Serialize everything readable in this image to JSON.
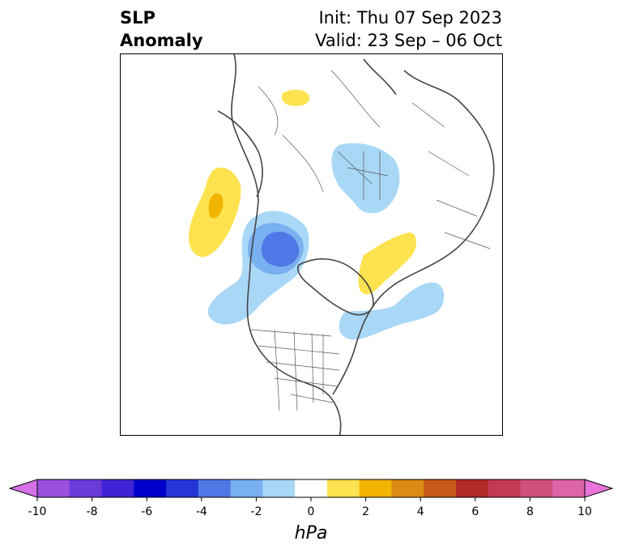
{
  "title": {
    "left_line1": "SLP",
    "left_line2": "Anomaly",
    "init": "Init: Thu 07 Sep 2023",
    "valid": "Valid: 23 Sep – 06 Oct"
  },
  "colorbar": {
    "unit": "hPa",
    "tick_labels": [
      "-10",
      "-8",
      "-6",
      "-4",
      "-2",
      "0",
      "2",
      "4",
      "6",
      "8",
      "10"
    ],
    "colors": [
      "#d471e6",
      "#9a4fdd",
      "#6a3bd8",
      "#3f23d6",
      "#0000cc",
      "#2436d8",
      "#4f78e6",
      "#78b0f0",
      "#a9d8f7",
      "#ffffff",
      "#fde24f",
      "#f2b400",
      "#dc8a12",
      "#c75a1a",
      "#b22a2a",
      "#c23a54",
      "#cf5078",
      "#dc64a8",
      "#e874d8"
    ]
  },
  "map_features": {
    "anomalies": [
      {
        "label": "negative-pacific-low",
        "color": "#4f78e6"
      },
      {
        "label": "negative-asia",
        "color": "#a9d8f7"
      },
      {
        "label": "positive-scandinavia",
        "color": "#fde24f"
      },
      {
        "label": "positive-alaska",
        "color": "#fde24f"
      },
      {
        "label": "positive-greenland",
        "color": "#fde24f"
      }
    ]
  }
}
